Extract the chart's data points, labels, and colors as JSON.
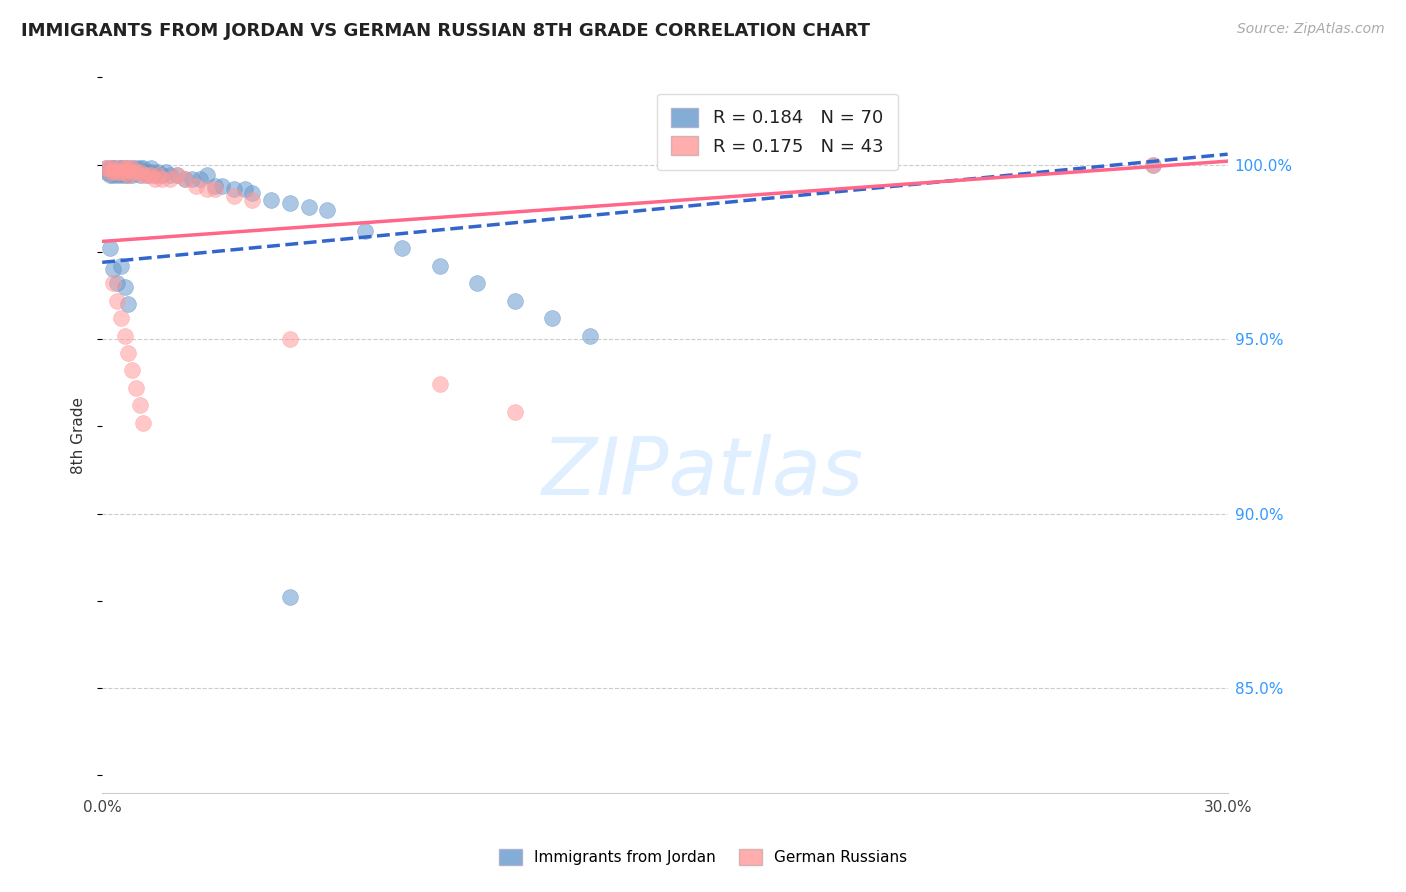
{
  "title": "IMMIGRANTS FROM JORDAN VS GERMAN RUSSIAN 8TH GRADE CORRELATION CHART",
  "source": "Source: ZipAtlas.com",
  "ylabel": "8th Grade",
  "ytick_labels": [
    "85.0%",
    "90.0%",
    "95.0%",
    "100.0%"
  ],
  "ytick_values": [
    0.85,
    0.9,
    0.95,
    1.0
  ],
  "xmin": 0.0,
  "xmax": 0.3,
  "ymin": 0.82,
  "ymax": 1.025,
  "jordan_color": "#6699CC",
  "german_color": "#FF9999",
  "jordan_line_color": "#3366CC",
  "german_line_color": "#FF6688",
  "jordan_N": 70,
  "german_N": 43,
  "jordan_scatter_x": [
    0.001,
    0.001,
    0.002,
    0.002,
    0.002,
    0.003,
    0.003,
    0.003,
    0.003,
    0.004,
    0.004,
    0.004,
    0.005,
    0.005,
    0.005,
    0.005,
    0.006,
    0.006,
    0.006,
    0.007,
    0.007,
    0.007,
    0.008,
    0.008,
    0.008,
    0.009,
    0.009,
    0.01,
    0.01,
    0.01,
    0.011,
    0.011,
    0.012,
    0.012,
    0.013,
    0.013,
    0.014,
    0.015,
    0.016,
    0.017,
    0.018,
    0.02,
    0.022,
    0.024,
    0.026,
    0.028,
    0.03,
    0.032,
    0.035,
    0.038,
    0.04,
    0.045,
    0.05,
    0.055,
    0.06,
    0.07,
    0.08,
    0.09,
    0.1,
    0.11,
    0.12,
    0.13,
    0.002,
    0.003,
    0.004,
    0.005,
    0.006,
    0.007,
    0.28,
    0.05
  ],
  "jordan_scatter_y": [
    0.999,
    0.998,
    0.999,
    0.998,
    0.997,
    0.999,
    0.999,
    0.998,
    0.997,
    0.999,
    0.998,
    0.997,
    0.999,
    0.999,
    0.998,
    0.997,
    0.999,
    0.998,
    0.997,
    0.999,
    0.998,
    0.997,
    0.999,
    0.998,
    0.997,
    0.999,
    0.998,
    0.999,
    0.998,
    0.997,
    0.999,
    0.998,
    0.998,
    0.997,
    0.999,
    0.998,
    0.997,
    0.998,
    0.997,
    0.998,
    0.997,
    0.997,
    0.996,
    0.996,
    0.996,
    0.997,
    0.994,
    0.994,
    0.993,
    0.993,
    0.992,
    0.99,
    0.989,
    0.988,
    0.987,
    0.981,
    0.976,
    0.971,
    0.966,
    0.961,
    0.956,
    0.951,
    0.976,
    0.97,
    0.966,
    0.971,
    0.965,
    0.96,
    1.0,
    0.876
  ],
  "german_scatter_x": [
    0.001,
    0.002,
    0.002,
    0.003,
    0.003,
    0.004,
    0.005,
    0.005,
    0.006,
    0.006,
    0.007,
    0.007,
    0.008,
    0.008,
    0.009,
    0.01,
    0.011,
    0.012,
    0.013,
    0.014,
    0.015,
    0.016,
    0.018,
    0.02,
    0.022,
    0.025,
    0.028,
    0.03,
    0.035,
    0.04,
    0.003,
    0.004,
    0.005,
    0.006,
    0.007,
    0.008,
    0.009,
    0.01,
    0.011,
    0.05,
    0.28,
    0.09,
    0.11
  ],
  "german_scatter_y": [
    0.999,
    0.999,
    0.998,
    0.999,
    0.998,
    0.998,
    0.999,
    0.998,
    0.999,
    0.998,
    0.999,
    0.997,
    0.999,
    0.998,
    0.998,
    0.998,
    0.997,
    0.997,
    0.997,
    0.996,
    0.997,
    0.996,
    0.996,
    0.997,
    0.996,
    0.994,
    0.993,
    0.993,
    0.991,
    0.99,
    0.966,
    0.961,
    0.956,
    0.951,
    0.946,
    0.941,
    0.936,
    0.931,
    0.926,
    0.95,
    1.0,
    0.937,
    0.929
  ],
  "jordan_trend_x": [
    0.0,
    0.3
  ],
  "jordan_trend_y": [
    0.972,
    1.003
  ],
  "german_trend_x": [
    0.0,
    0.3
  ],
  "german_trend_y": [
    0.978,
    1.001
  ]
}
